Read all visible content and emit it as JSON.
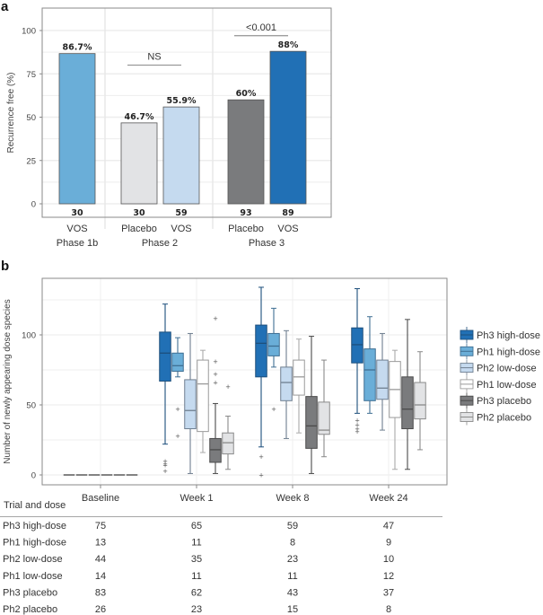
{
  "chart_data": [
    {
      "panel": "a",
      "type": "bar",
      "ylabel": "Recurrence free (%)",
      "ylim": [
        0,
        110
      ],
      "yticks": [
        0,
        25,
        50,
        75,
        100
      ],
      "grid": true,
      "groups": [
        {
          "label": "Phase 1b",
          "bars": [
            {
              "category": "VOS",
              "value": 86.7,
              "label": "86.7%",
              "n": "30",
              "color": "#6aaed8"
            }
          ]
        },
        {
          "label": "Phase 2",
          "bars": [
            {
              "category": "Placebo",
              "value": 46.7,
              "label": "46.7%",
              "n": "30",
              "color": "#e2e3e5"
            },
            {
              "category": "VOS",
              "value": 55.9,
              "label": "55.9%",
              "n": "59",
              "color": "#c5daef"
            }
          ],
          "annotation": "NS",
          "annotation_y": 80
        },
        {
          "label": "Phase 3",
          "bars": [
            {
              "category": "Placebo",
              "value": 60,
              "label": "60%",
              "n": "93",
              "color": "#7a7b7d"
            },
            {
              "category": "VOS",
              "value": 88,
              "label": "88%",
              "n": "89",
              "color": "#2170b5"
            }
          ],
          "annotation": "<0.001",
          "annotation_y": 97
        }
      ]
    },
    {
      "panel": "b",
      "type": "box",
      "ylabel": "Number of newly appearing dose species",
      "ylim": [
        -7,
        139
      ],
      "yticks": [
        0,
        50,
        100
      ],
      "grid": true,
      "categories": [
        "Baseline",
        "Week 1",
        "Week 8",
        "Week 24"
      ],
      "legend_position": "right",
      "series": [
        {
          "name": "Ph3 high-dose",
          "color": "#2170b5",
          "edge": "#1d4f7c",
          "boxes": [
            {
              "min": 0,
              "q1": 0,
              "median": 0,
              "q3": 0,
              "max": 0,
              "outliers": []
            },
            {
              "min": 22,
              "q1": 67,
              "median": 87,
              "q3": 102,
              "max": 122,
              "outliers": [
                10,
                8,
                7,
                3
              ]
            },
            {
              "min": 20,
              "q1": 70,
              "median": 94,
              "q3": 107,
              "max": 134,
              "outliers": [
                13,
                0
              ]
            },
            {
              "min": 44,
              "q1": 80,
              "median": 93,
              "q3": 105,
              "max": 133,
              "outliers": [
                39,
                36,
                33,
                31
              ]
            }
          ]
        },
        {
          "name": "Ph1 high-dose",
          "color": "#6aaed8",
          "edge": "#3f6f93",
          "boxes": [
            {
              "min": 0,
              "q1": 0,
              "median": 0,
              "q3": 0,
              "max": 0,
              "outliers": []
            },
            {
              "min": 70,
              "q1": 74,
              "median": 78,
              "q3": 87,
              "max": 98,
              "outliers": [
                47,
                28
              ]
            },
            {
              "min": 77,
              "q1": 85,
              "median": 92,
              "q3": 101,
              "max": 119,
              "outliers": [
                47
              ]
            },
            {
              "min": 44,
              "q1": 53,
              "median": 75,
              "q3": 90,
              "max": 113,
              "outliers": []
            }
          ]
        },
        {
          "name": "Ph2 low-dose",
          "color": "#c5daef",
          "edge": "#6f7f90",
          "boxes": [
            {
              "min": 0,
              "q1": 0,
              "median": 0,
              "q3": 0,
              "max": 0,
              "outliers": []
            },
            {
              "min": 1,
              "q1": 33,
              "median": 46,
              "q3": 68,
              "max": 101,
              "outliers": []
            },
            {
              "min": 26,
              "q1": 53,
              "median": 66,
              "q3": 77,
              "max": 103,
              "outliers": []
            },
            {
              "min": 32,
              "q1": 54,
              "median": 62,
              "q3": 82,
              "max": 101,
              "outliers": []
            }
          ]
        },
        {
          "name": "Ph1 low-dose",
          "color": "#ffffff",
          "edge": "#9a9a9a",
          "boxes": [
            {
              "min": 0,
              "q1": 0,
              "median": 0,
              "q3": 0,
              "max": 0,
              "outliers": []
            },
            {
              "min": 16,
              "q1": 31,
              "median": 65,
              "q3": 82,
              "max": 89,
              "outliers": []
            },
            {
              "min": 30,
              "q1": 57,
              "median": 70,
              "q3": 82,
              "max": 97,
              "outliers": []
            },
            {
              "min": 4,
              "q1": 41,
              "median": 61,
              "q3": 81,
              "max": 89,
              "outliers": []
            }
          ]
        },
        {
          "name": "Ph3 placebo",
          "color": "#7a7b7d",
          "edge": "#4a4a4a",
          "boxes": [
            {
              "min": 0,
              "q1": 0,
              "median": 0,
              "q3": 0,
              "max": 0,
              "outliers": []
            },
            {
              "min": 1,
              "q1": 9,
              "median": 18,
              "q3": 26,
              "max": 51,
              "outliers": [
                112,
                81,
                72,
                66
              ]
            },
            {
              "min": 1,
              "q1": 19,
              "median": 35,
              "q3": 56,
              "max": 99,
              "outliers": []
            },
            {
              "min": 4,
              "q1": 33,
              "median": 47,
              "q3": 70,
              "max": 111,
              "outliers": []
            }
          ]
        },
        {
          "name": "Ph2 placebo",
          "color": "#e2e3e5",
          "edge": "#8a8a8a",
          "boxes": [
            {
              "min": 0,
              "q1": 0,
              "median": 0,
              "q3": 0,
              "max": 0,
              "outliers": []
            },
            {
              "min": 4,
              "q1": 15,
              "median": 23,
              "q3": 30,
              "max": 42,
              "outliers": [
                63
              ]
            },
            {
              "min": 13,
              "q1": 29,
              "median": 32,
              "q3": 52,
              "max": 82,
              "outliers": []
            },
            {
              "min": 18,
              "q1": 40,
              "median": 50,
              "q3": 66,
              "max": 88,
              "outliers": []
            }
          ]
        }
      ],
      "table": {
        "header": "Trial and dose",
        "rows": [
          {
            "label": "Ph3 high-dose",
            "values": [
              "75",
              "65",
              "59",
              "47"
            ]
          },
          {
            "label": "Ph1 high-dose",
            "values": [
              "13",
              "11",
              "8",
              "9"
            ]
          },
          {
            "label": "Ph2 low-dose",
            "values": [
              "44",
              "35",
              "23",
              "10"
            ]
          },
          {
            "label": "Ph1 low-dose",
            "values": [
              "14",
              "11",
              "11",
              "12"
            ]
          },
          {
            "label": "Ph3 placebo",
            "values": [
              "83",
              "62",
              "43",
              "37"
            ]
          },
          {
            "label": "Ph2 placebo",
            "values": [
              "26",
              "23",
              "15",
              "8"
            ]
          }
        ]
      }
    }
  ],
  "panels": {
    "a": "a",
    "b": "b"
  }
}
